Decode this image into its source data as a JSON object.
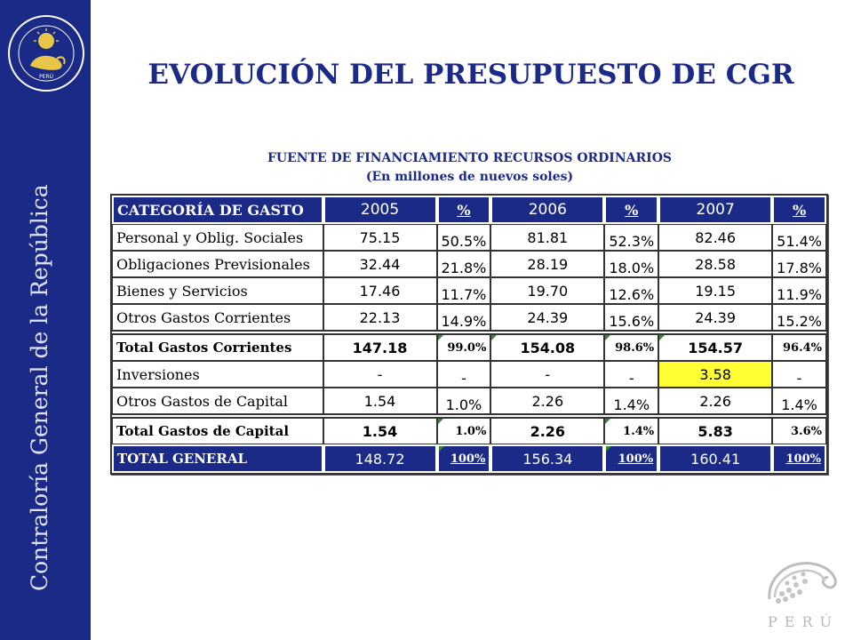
{
  "sidebar": {
    "vertical_text": "Contraloría General de la República",
    "seal_caption": "PERÚ"
  },
  "slide": {
    "title": "EVOLUCIÓN DEL PRESUPUESTO DE CGR",
    "subtitle_line1": "FUENTE DE FINANCIAMIENTO RECURSOS ORDINARIOS",
    "subtitle_line2": "(En millones de nuevos soles)"
  },
  "table": {
    "header": {
      "category": "CATEGORÍA DE GASTO",
      "y2005": "2005",
      "p2005": "%",
      "y2006": "2006",
      "p2006": "%",
      "y2007": "2007",
      "p2007": "%"
    },
    "rows": [
      {
        "category": "Personal y Oblig. Sociales",
        "v2005": "75.15",
        "p2005": "50.5%",
        "v2006": "81.81",
        "p2006": "52.3%",
        "v2007": "82.46",
        "p2007": "51.4%"
      },
      {
        "category": "Obligaciones Previsionales",
        "v2005": "32.44",
        "p2005": "21.8%",
        "v2006": "28.19",
        "p2006": "18.0%",
        "v2007": "28.58",
        "p2007": "17.8%"
      },
      {
        "category": "Bienes y Servicios",
        "v2005": "17.46",
        "p2005": "11.7%",
        "v2006": "19.70",
        "p2006": "12.6%",
        "v2007": "19.15",
        "p2007": "11.9%"
      },
      {
        "category": "Otros Gastos Corrientes",
        "v2005": "22.13",
        "p2005": "14.9%",
        "v2006": "24.39",
        "p2006": "15.6%",
        "v2007": "24.39",
        "p2007": "15.2%"
      },
      {
        "category": "Total Gastos Corrientes",
        "v2005": "147.18",
        "p2005": "99.0%",
        "v2006": "154.08",
        "p2006": "98.6%",
        "v2007": "154.57",
        "p2007": "96.4%"
      },
      {
        "category": "Inversiones",
        "v2005": "-",
        "p2005": "-",
        "v2006": "-",
        "p2006": "-",
        "v2007": "3.58",
        "p2007": "-"
      },
      {
        "category": "Otros Gastos de Capital",
        "v2005": "1.54",
        "p2005": "1.0%",
        "v2006": "2.26",
        "p2006": "1.4%",
        "v2007": "2.26",
        "p2007": "1.4%"
      },
      {
        "category": "Total Gastos de Capital",
        "v2005": "1.54",
        "p2005": "1.0%",
        "v2006": "2.26",
        "p2006": "1.4%",
        "v2007": "5.83",
        "p2007": "3.6%"
      },
      {
        "category": "TOTAL GENERAL",
        "v2005": "148.72",
        "p2005": "100%",
        "v2006": "156.34",
        "p2006": "100%",
        "v2007": "160.41",
        "p2007": "100%"
      }
    ]
  },
  "footer": {
    "peru_label": "PERÚ"
  },
  "colors": {
    "navy": "#1b2a86",
    "highlight": "#ffff33",
    "marker": "#2e8b2e"
  }
}
